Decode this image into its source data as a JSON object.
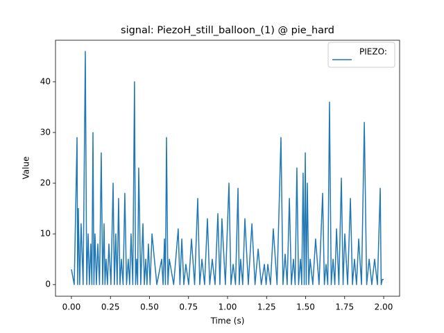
{
  "chart_data": {
    "type": "line",
    "title": "signal: PiezoH_still_balloon_(1) @ pie_hard",
    "xlabel": "Time (s)",
    "ylabel": "Value",
    "x": [
      0,
      0.018,
      0.036,
      0.04,
      0.044,
      0.053,
      0.062,
      0.075,
      0.089,
      0.098,
      0.107,
      0.115,
      0.124,
      0.131,
      0.138,
      0.144,
      0.151,
      0.16,
      0.169,
      0.18,
      0.191,
      0.2,
      0.209,
      0.215,
      0.222,
      0.231,
      0.24,
      0.253,
      0.267,
      0.275,
      0.284,
      0.293,
      0.302,
      0.311,
      0.32,
      0.331,
      0.342,
      0.353,
      0.364,
      0.373,
      0.382,
      0.393,
      0.404,
      0.411,
      0.418,
      0.424,
      0.431,
      0.444,
      0.458,
      0.467,
      0.476,
      0.484,
      0.493,
      0.504,
      0.516,
      0.547,
      0.578,
      0.587,
      0.596,
      0.602,
      0.609,
      0.618,
      0.627,
      0.655,
      0.684,
      0.695,
      0.707,
      0.72,
      0.733,
      0.751,
      0.769,
      0.789,
      0.809,
      0.822,
      0.836,
      0.853,
      0.871,
      0.886,
      0.902,
      0.92,
      0.938,
      0.951,
      0.964,
      0.986,
      1.009,
      1.022,
      1.036,
      1.051,
      1.067,
      1.075,
      1.084,
      1.097,
      1.111,
      1.133,
      1.156,
      1.176,
      1.196,
      1.216,
      1.236,
      1.247,
      1.258,
      1.275,
      1.293,
      1.317,
      1.342,
      1.355,
      1.369,
      1.382,
      1.396,
      1.409,
      1.422,
      1.433,
      1.444,
      1.455,
      1.467,
      1.475,
      1.484,
      1.491,
      1.498,
      1.504,
      1.511,
      1.52,
      1.529,
      1.546,
      1.564,
      1.586,
      1.609,
      1.62,
      1.631,
      1.642,
      1.653,
      1.664,
      1.676,
      1.687,
      1.698,
      1.713,
      1.729,
      1.74,
      1.751,
      1.769,
      1.787,
      1.8,
      1.813,
      1.826,
      1.84,
      1.858,
      1.876,
      1.891,
      1.907,
      1.924,
      1.942,
      1.96,
      1.978,
      1.984,
      1.991,
      2.0
    ],
    "series": [
      {
        "name": "PIEZO:",
        "color": "#1f77b4",
        "values": [
          3,
          0,
          29,
          0,
          15,
          0,
          12,
          0,
          46,
          0,
          10,
          0,
          8,
          0,
          30,
          0,
          10,
          0,
          8,
          0,
          26,
          0,
          12,
          0,
          5,
          0,
          8,
          0,
          20,
          0,
          10,
          0,
          17,
          0,
          5,
          0,
          18,
          0,
          5,
          0,
          10,
          0,
          40,
          0,
          5,
          0,
          23,
          0,
          12,
          0,
          5,
          0,
          8,
          0,
          10,
          0,
          5,
          0,
          9,
          0,
          29,
          0,
          5,
          0,
          11,
          0,
          9,
          0,
          4,
          0,
          9,
          0,
          17,
          0,
          5,
          0,
          13,
          0,
          5,
          0,
          14,
          0,
          13,
          0,
          20,
          0,
          4,
          0,
          19,
          0,
          5,
          0,
          13,
          0,
          12,
          0,
          7,
          0,
          4,
          0,
          4,
          0,
          11,
          0,
          29,
          0,
          6,
          0,
          17,
          0,
          5,
          0,
          23,
          0,
          5,
          0,
          22,
          0,
          26,
          0,
          20,
          0,
          5,
          0,
          9,
          0,
          18,
          0,
          4,
          0,
          36,
          0,
          5,
          0,
          11,
          0,
          21,
          0,
          10,
          0,
          17,
          0,
          5,
          0,
          9,
          0,
          32,
          0,
          5,
          0,
          5,
          0,
          19,
          0,
          1,
          1
        ]
      }
    ],
    "xlim": [
      -0.102,
      2.102
    ],
    "ylim": [
      -2.3,
      48.2
    ],
    "xticks": [
      {
        "value": 0,
        "label": "0.00"
      },
      {
        "value": 0.25,
        "label": "0.25"
      },
      {
        "value": 0.5,
        "label": "0.50"
      },
      {
        "value": 0.75,
        "label": "0.75"
      },
      {
        "value": 1,
        "label": "1.00"
      },
      {
        "value": 1.25,
        "label": "1.25"
      },
      {
        "value": 1.5,
        "label": "1.50"
      },
      {
        "value": 1.75,
        "label": "1.75"
      },
      {
        "value": 2,
        "label": "2.00"
      }
    ],
    "yticks": [
      0,
      10,
      20,
      30,
      40
    ],
    "legend": "upper right",
    "grid": false
  }
}
